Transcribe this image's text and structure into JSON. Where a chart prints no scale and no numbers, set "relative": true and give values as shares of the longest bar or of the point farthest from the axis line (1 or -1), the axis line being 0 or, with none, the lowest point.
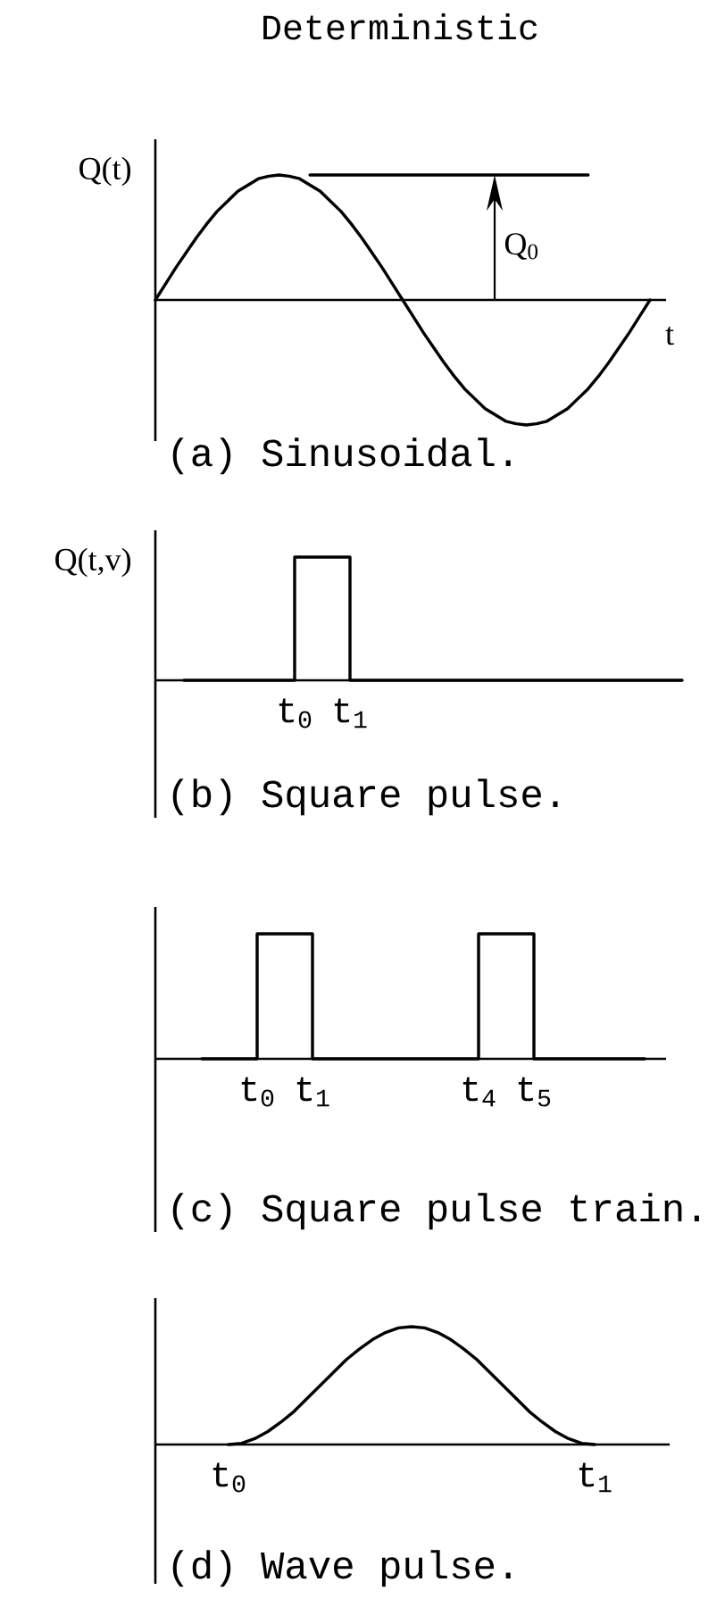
{
  "chart_data": [
    {
      "type": "line",
      "title": "Deterministic",
      "xlabel": "t",
      "ylabel": "Q(t)",
      "relative": true,
      "categories": [
        null,
        null,
        null,
        null,
        null,
        null,
        null,
        null,
        null,
        null,
        null,
        null,
        null,
        null,
        null,
        null,
        null,
        null,
        null,
        null,
        null,
        null,
        null,
        null,
        null,
        null,
        null,
        null,
        null,
        null,
        null,
        null,
        null,
        null,
        null,
        null,
        null,
        null,
        null,
        null,
        null,
        null,
        null,
        null,
        null,
        null,
        null,
        null,
        null
      ],
      "series": [
        {
          "color": "#000000",
          "values": [
            0,
            0.13,
            0.26,
            0.38,
            0.5,
            0.61,
            0.71,
            0.79,
            0.87,
            0.92,
            0.97,
            0.99,
            1,
            0.99,
            0.97,
            0.92,
            0.87,
            0.79,
            0.71,
            0.61,
            0.5,
            0.38,
            0.26,
            0.13,
            0,
            -0.13,
            -0.26,
            -0.38,
            -0.5,
            -0.61,
            -0.71,
            -0.79,
            -0.87,
            -0.92,
            -0.97,
            -0.99,
            -1,
            -0.99,
            -0.97,
            -0.92,
            -0.87,
            -0.79,
            -0.71,
            -0.61,
            -0.5,
            -0.38,
            -0.26,
            -0.13,
            0
          ]
        },
        {
          "color": "#000000",
          "values": [
            null,
            null,
            null,
            null,
            null,
            null,
            null,
            null,
            null,
            null,
            null,
            null,
            null,
            null,
            null,
            1,
            1,
            1,
            1,
            1,
            1,
            1,
            1,
            1,
            1,
            1,
            1,
            1,
            1,
            1,
            1,
            1,
            1,
            1,
            1,
            1,
            1,
            1,
            1,
            1,
            1,
            1,
            1,
            null,
            null,
            null,
            null,
            null,
            null
          ]
        }
      ],
      "annotations": [
        {
          "text": "Q$_{0}$",
          "y": 1
        },
        "(a) Sinusoidal."
      ]
    },
    {
      "type": "step",
      "ylabel": "Q(t,v)",
      "relative": true,
      "categories": [
        null,
        null,
        "t$_{0}$",
        "t$_{1}$",
        null,
        null,
        null,
        null,
        null,
        null
      ],
      "series": [
        {
          "color": "#000000",
          "values": [
            0,
            0,
            1,
            0,
            0,
            0,
            0,
            0,
            0,
            0
          ]
        }
      ],
      "annotations": [
        "(b) Square pulse."
      ]
    },
    {
      "type": "step",
      "relative": true,
      "categories": [
        null,
        "t$_{0}$",
        "t$_{1}$",
        null,
        null,
        "t$_{4}$",
        "t$_{5}$",
        null,
        null
      ],
      "series": [
        {
          "color": "#000000",
          "values": [
            0,
            1,
            0,
            0,
            0,
            1,
            0,
            0,
            0
          ]
        }
      ],
      "annotations": [
        "(c) Square pulse train."
      ]
    },
    {
      "type": "line",
      "relative": true,
      "categories": [
        "t$_{0}$",
        null,
        null,
        null,
        null,
        null,
        null,
        null,
        null,
        null,
        null,
        null,
        null,
        null,
        null,
        null,
        null,
        null,
        null,
        null,
        null,
        null,
        null,
        null,
        null,
        null,
        null,
        null,
        "t$_{1}$"
      ],
      "series": [
        {
          "color": "#000000",
          "values": [
            0,
            0.01,
            0.05,
            0.11,
            0.19,
            0.28,
            0.39,
            0.5,
            0.61,
            0.72,
            0.81,
            0.89,
            0.95,
            0.99,
            1,
            0.99,
            0.95,
            0.89,
            0.81,
            0.72,
            0.61,
            0.5,
            0.39,
            0.28,
            0.19,
            0.11,
            0.05,
            0.01,
            0
          ]
        }
      ],
      "annotations": [
        "(d) Wave pulse."
      ]
    }
  ]
}
